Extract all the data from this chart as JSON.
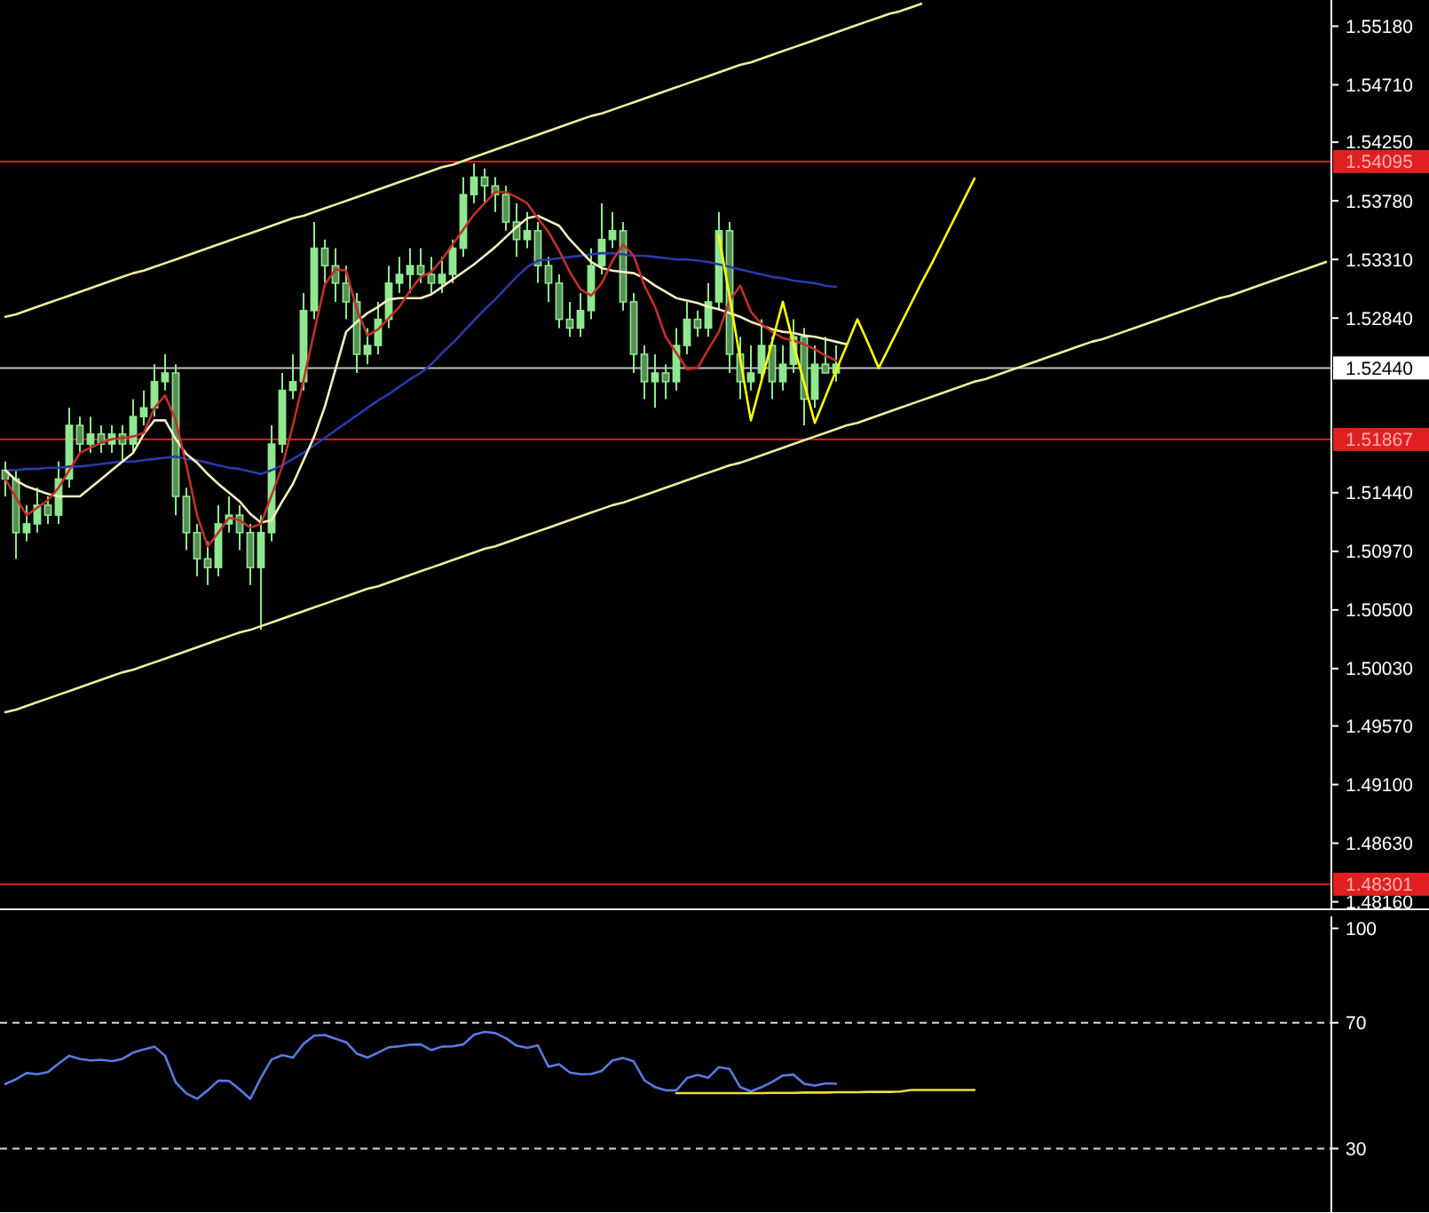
{
  "chart_data": [
    {
      "type": "candlestick",
      "ylim": [
        1.481,
        1.5539
      ],
      "tick_labels": "y",
      "color": "#8fe88f",
      "grid": false,
      "legend": false,
      "yticks": [
        {
          "value": 1.5518,
          "label": "1.55180"
        },
        {
          "value": 1.5471,
          "label": "1.54710"
        },
        {
          "value": 1.5425,
          "label": "1.54250"
        },
        {
          "value": 1.5378,
          "label": "1.53780"
        },
        {
          "value": 1.5331,
          "label": "1.53310"
        },
        {
          "value": 1.5284,
          "label": "1.52840"
        },
        {
          "value": 1.5144,
          "label": "1.51440"
        },
        {
          "value": 1.5097,
          "label": "1.50970"
        },
        {
          "value": 1.505,
          "label": "1.50500"
        },
        {
          "value": 1.5003,
          "label": "1.50030"
        },
        {
          "value": 1.4957,
          "label": "1.49570"
        },
        {
          "value": 1.491,
          "label": "1.49100"
        },
        {
          "value": 1.4863,
          "label": "1.48630"
        },
        {
          "value": 1.4816,
          "label": "1.48160"
        }
      ],
      "categories": [
        null,
        null,
        null,
        null,
        null,
        null,
        null,
        null,
        null,
        null,
        null,
        null,
        null,
        null,
        null,
        null,
        null,
        null,
        null,
        null,
        null,
        null,
        null,
        null,
        null,
        null,
        null,
        null,
        null,
        null,
        null,
        null,
        null,
        null,
        null,
        null,
        null,
        null,
        null,
        null,
        null,
        null,
        null,
        null,
        null,
        null,
        null,
        null,
        null,
        null,
        null,
        null,
        null,
        null,
        null,
        null,
        null,
        null,
        null,
        null,
        null,
        null,
        null,
        null,
        null,
        null,
        null,
        null,
        null,
        null,
        null,
        null,
        null,
        null,
        null,
        null,
        null,
        null,
        null,
        null,
        null,
        null,
        null,
        null,
        null,
        null,
        null,
        null,
        null,
        null,
        null,
        null,
        null,
        null,
        null,
        null,
        null,
        null,
        null,
        null,
        null,
        null,
        null,
        null,
        null,
        null,
        null,
        null,
        null,
        null,
        null,
        null,
        null,
        null,
        null,
        null,
        null,
        null,
        null,
        null,
        null,
        null,
        null,
        null,
        null
      ],
      "ohlc": [
        [
          1.5162,
          1.5169,
          1.5141,
          1.5155
        ],
        [
          1.5155,
          1.5162,
          1.5091,
          1.5112
        ],
        [
          1.5112,
          1.5134,
          1.5105,
          1.5119
        ],
        [
          1.5119,
          1.5148,
          1.5112,
          1.5134
        ],
        [
          1.5134,
          1.5141,
          1.5119,
          1.5126
        ],
        [
          1.5126,
          1.5169,
          1.5119,
          1.5155
        ],
        [
          1.5155,
          1.5212,
          1.5148,
          1.5198
        ],
        [
          1.5198,
          1.5205,
          1.5176,
          1.5183
        ],
        [
          1.5183,
          1.5205,
          1.5176,
          1.5191
        ],
        [
          1.5191,
          1.5198,
          1.5176,
          1.5183
        ],
        [
          1.5183,
          1.5198,
          1.5176,
          1.5191
        ],
        [
          1.5191,
          1.5198,
          1.5169,
          1.5183
        ],
        [
          1.5183,
          1.5219,
          1.5176,
          1.5205
        ],
        [
          1.5205,
          1.5226,
          1.5198,
          1.5212
        ],
        [
          1.5212,
          1.5247,
          1.5205,
          1.5233
        ],
        [
          1.5233,
          1.5255,
          1.5226,
          1.524
        ],
        [
          1.524,
          1.5247,
          1.5126,
          1.5141
        ],
        [
          1.5141,
          1.5148,
          1.5098,
          1.5112
        ],
        [
          1.5112,
          1.5119,
          1.5077,
          1.5091
        ],
        [
          1.5091,
          1.5105,
          1.507,
          1.5084
        ],
        [
          1.5084,
          1.5134,
          1.5077,
          1.5119
        ],
        [
          1.5119,
          1.5141,
          1.5112,
          1.5126
        ],
        [
          1.5126,
          1.5134,
          1.5098,
          1.5112
        ],
        [
          1.5112,
          1.5119,
          1.507,
          1.5084
        ],
        [
          1.5084,
          1.5126,
          1.5034,
          1.5112
        ],
        [
          1.5112,
          1.5198,
          1.5105,
          1.5183
        ],
        [
          1.5183,
          1.524,
          1.5176,
          1.5226
        ],
        [
          1.5226,
          1.5255,
          1.5219,
          1.5233
        ],
        [
          1.5233,
          1.5304,
          1.5226,
          1.529
        ],
        [
          1.529,
          1.5361,
          1.5283,
          1.534
        ],
        [
          1.534,
          1.5347,
          1.5312,
          1.5326
        ],
        [
          1.5326,
          1.534,
          1.5297,
          1.5312
        ],
        [
          1.5312,
          1.5326,
          1.5283,
          1.5297
        ],
        [
          1.5297,
          1.5304,
          1.524,
          1.5255
        ],
        [
          1.5255,
          1.5276,
          1.5247,
          1.5262
        ],
        [
          1.5262,
          1.5297,
          1.5255,
          1.5283
        ],
        [
          1.5283,
          1.5326,
          1.5276,
          1.5312
        ],
        [
          1.5312,
          1.5333,
          1.5304,
          1.5319
        ],
        [
          1.5319,
          1.534,
          1.5304,
          1.5326
        ],
        [
          1.5326,
          1.534,
          1.5312,
          1.5319
        ],
        [
          1.5319,
          1.5333,
          1.5304,
          1.5312
        ],
        [
          1.5312,
          1.5333,
          1.5304,
          1.5319
        ],
        [
          1.5319,
          1.5347,
          1.5312,
          1.534
        ],
        [
          1.534,
          1.5397,
          1.5333,
          1.5383
        ],
        [
          1.5383,
          1.5408,
          1.5376,
          1.5397
        ],
        [
          1.5397,
          1.5404,
          1.5376,
          1.539
        ],
        [
          1.539,
          1.5397,
          1.5369,
          1.5383
        ],
        [
          1.5383,
          1.539,
          1.5354,
          1.5361
        ],
        [
          1.5361,
          1.5376,
          1.5333,
          1.5347
        ],
        [
          1.5347,
          1.5369,
          1.534,
          1.5354
        ],
        [
          1.5354,
          1.5361,
          1.5312,
          1.5326
        ],
        [
          1.5326,
          1.5333,
          1.5297,
          1.5312
        ],
        [
          1.5312,
          1.5319,
          1.5276,
          1.5283
        ],
        [
          1.5283,
          1.5297,
          1.5269,
          1.5276
        ],
        [
          1.5276,
          1.5304,
          1.5269,
          1.529
        ],
        [
          1.529,
          1.534,
          1.5283,
          1.5326
        ],
        [
          1.5326,
          1.5376,
          1.5319,
          1.5347
        ],
        [
          1.5347,
          1.5369,
          1.534,
          1.5354
        ],
        [
          1.5354,
          1.5361,
          1.529,
          1.5297
        ],
        [
          1.5297,
          1.5304,
          1.524,
          1.5255
        ],
        [
          1.5255,
          1.5262,
          1.5219,
          1.5233
        ],
        [
          1.5233,
          1.5255,
          1.5212,
          1.524
        ],
        [
          1.524,
          1.5247,
          1.5219,
          1.5233
        ],
        [
          1.5233,
          1.5276,
          1.5226,
          1.5262
        ],
        [
          1.5262,
          1.5297,
          1.5255,
          1.5283
        ],
        [
          1.5283,
          1.529,
          1.5269,
          1.5276
        ],
        [
          1.5276,
          1.5312,
          1.5269,
          1.5297
        ],
        [
          1.5297,
          1.5369,
          1.529,
          1.5354
        ],
        [
          1.5354,
          1.5361,
          1.524,
          1.5255
        ],
        [
          1.5255,
          1.5269,
          1.5219,
          1.5233
        ],
        [
          1.5233,
          1.5262,
          1.5226,
          1.524
        ],
        [
          1.524,
          1.5283,
          1.5233,
          1.5262
        ],
        [
          1.5262,
          1.5269,
          1.5219,
          1.5233
        ],
        [
          1.5233,
          1.5262,
          1.5226,
          1.5247
        ],
        [
          1.5247,
          1.5283,
          1.524,
          1.5269
        ],
        [
          1.5269,
          1.5276,
          1.5198,
          1.5219
        ],
        [
          1.5219,
          1.5262,
          1.5212,
          1.5247
        ],
        [
          1.5247,
          1.5269,
          1.524,
          1.524
        ],
        [
          1.524,
          1.5262,
          1.5233,
          1.5247
        ],
        null,
        null,
        null,
        null,
        null,
        null,
        null,
        null,
        null,
        null,
        null,
        null,
        null,
        null,
        null,
        null,
        null,
        null,
        null,
        null,
        null,
        null,
        null,
        null,
        null,
        null,
        null,
        null,
        null,
        null,
        null,
        null,
        null,
        null,
        null,
        null,
        null,
        null,
        null,
        null,
        null,
        null,
        null,
        null,
        null,
        null
      ],
      "series": [
        {
          "type": "line",
          "color": "#2a3aa8",
          "values": [
            1.5162,
            1.5162,
            1.5163,
            1.5163,
            1.5164,
            1.5164,
            1.5165,
            1.5165,
            1.5166,
            1.5167,
            1.5168,
            1.5169,
            1.5169,
            1.517,
            1.5171,
            1.5172,
            1.5173,
            1.5171,
            1.517,
            1.5168,
            1.5166,
            1.5164,
            1.5163,
            1.5161,
            1.5159,
            1.5162,
            1.5166,
            1.5171,
            1.5176,
            1.5182,
            1.5188,
            1.5194,
            1.52,
            1.5206,
            1.5212,
            1.5218,
            1.5223,
            1.5229,
            1.5235,
            1.524,
            1.5247,
            1.5256,
            1.5264,
            1.5273,
            1.5282,
            1.5291,
            1.5299,
            1.5308,
            1.5317,
            1.5325,
            1.533,
            1.5331,
            1.5332,
            1.5333,
            1.5334,
            1.5335,
            1.5336,
            1.5336,
            1.5335,
            1.5334,
            1.5334,
            1.5333,
            1.5332,
            1.5331,
            1.5331,
            1.533,
            1.5329,
            1.5327,
            1.5325,
            1.5323,
            1.5321,
            1.5319,
            1.5317,
            1.5316,
            1.5314,
            1.5313,
            1.5312,
            1.531,
            1.5309,
            null,
            null,
            null,
            null,
            null,
            null,
            null,
            null,
            null,
            null,
            null,
            null,
            null,
            null,
            null,
            null,
            null,
            null,
            null,
            null,
            null,
            null,
            null,
            null,
            null,
            null,
            null,
            null,
            null,
            null,
            null,
            null,
            null,
            null,
            null,
            null,
            null,
            null,
            null,
            null,
            null,
            null,
            null,
            null,
            null,
            null
          ]
        },
        {
          "type": "line",
          "color": "#f5f0c0",
          "values": [
            1.5162,
            1.5154,
            1.5149,
            1.5146,
            1.5143,
            1.5141,
            1.5141,
            1.5141,
            1.5148,
            1.5155,
            1.5162,
            1.5169,
            1.5176,
            1.5191,
            1.5202,
            1.5202,
            1.5187,
            1.5175,
            1.5168,
            1.5159,
            1.5151,
            1.5144,
            1.5137,
            1.5127,
            1.512,
            1.5122,
            1.5137,
            1.5151,
            1.517,
            1.5189,
            1.5213,
            1.5243,
            1.5273,
            1.5281,
            1.5288,
            1.5293,
            1.5299,
            1.53,
            1.53,
            1.53,
            1.5303,
            1.5309,
            1.5315,
            1.5321,
            1.5327,
            1.5334,
            1.5341,
            1.5349,
            1.5357,
            1.5364,
            1.5366,
            1.5362,
            1.5358,
            1.5347,
            1.5338,
            1.5329,
            1.5324,
            1.5322,
            1.5321,
            1.532,
            1.5316,
            1.531,
            1.5305,
            1.53,
            1.5298,
            1.5296,
            1.5293,
            1.5291,
            1.5288,
            1.5285,
            1.5281,
            1.5278,
            1.5275,
            1.5273,
            1.5272,
            1.527,
            1.5269,
            1.5267,
            1.5265,
            1.5263,
            null,
            null,
            null,
            null,
            null,
            null,
            null,
            null,
            null,
            null,
            null,
            null,
            null,
            null,
            null,
            null,
            null,
            null,
            null,
            null,
            null,
            null,
            null,
            null,
            null,
            null,
            null,
            null,
            null,
            null,
            null,
            null,
            null,
            null,
            null,
            null,
            null,
            null,
            null,
            null,
            null,
            null,
            null,
            null,
            null
          ]
        },
        {
          "type": "line",
          "color": "#c0302a",
          "values": [
            1.5155,
            1.514,
            1.5126,
            1.5132,
            1.5138,
            1.5148,
            1.5162,
            1.5176,
            1.518,
            1.5184,
            1.5187,
            1.5188,
            1.5189,
            1.5192,
            1.5212,
            1.5222,
            1.5202,
            1.5166,
            1.5126,
            1.5101,
            1.5112,
            1.5124,
            1.5122,
            1.5116,
            1.5119,
            1.5142,
            1.5165,
            1.5198,
            1.5234,
            1.5273,
            1.5311,
            1.5323,
            1.5322,
            1.5291,
            1.527,
            1.5275,
            1.5284,
            1.5293,
            1.5306,
            1.5317,
            1.5321,
            1.5331,
            1.5343,
            1.5355,
            1.5367,
            1.5376,
            1.5385,
            1.5385,
            1.5381,
            1.5376,
            1.5364,
            1.5353,
            1.5338,
            1.5321,
            1.5307,
            1.5302,
            1.5312,
            1.533,
            1.5343,
            1.5334,
            1.531,
            1.5293,
            1.5269,
            1.5256,
            1.5243,
            1.5244,
            1.5259,
            1.5273,
            1.5298,
            1.531,
            1.5289,
            1.5279,
            1.5273,
            1.5268,
            1.5266,
            1.5263,
            1.5259,
            1.5254,
            1.525,
            null,
            null,
            null,
            null,
            null,
            null,
            null,
            null,
            null,
            null,
            null,
            null,
            null,
            null,
            null,
            null,
            null,
            null,
            null,
            null,
            null,
            null,
            null,
            null,
            null,
            null,
            null,
            null,
            null,
            null,
            null,
            null,
            null,
            null,
            null,
            null,
            null,
            null,
            null,
            null,
            null,
            null,
            null,
            null,
            null,
            null
          ]
        },
        {
          "type": "line",
          "color": "#f0f0a0",
          "values": [
            1.5285,
            1.5287,
            1.529,
            1.5293,
            1.5296,
            1.5299,
            1.5302,
            1.5305,
            1.5308,
            1.5311,
            1.5314,
            1.5317,
            1.532,
            1.5322,
            1.5325,
            1.5328,
            1.5331,
            1.5334,
            1.5337,
            1.534,
            1.5343,
            1.5346,
            1.5349,
            1.5352,
            1.5355,
            1.5358,
            1.5361,
            1.5364,
            1.5366,
            1.5369,
            1.5372,
            1.5375,
            1.5378,
            1.5381,
            1.5384,
            1.5387,
            1.539,
            1.5393,
            1.5396,
            1.5399,
            1.5402,
            1.5405,
            1.5407,
            1.541,
            1.5413,
            1.5416,
            1.5419,
            1.5422,
            1.5425,
            1.5428,
            1.5431,
            1.5434,
            1.5437,
            1.544,
            1.5443,
            1.5446,
            1.5448,
            1.5451,
            1.5454,
            1.5457,
            1.546,
            1.5463,
            1.5466,
            1.5469,
            1.5472,
            1.5475,
            1.5478,
            1.5481,
            1.5484,
            1.5487,
            1.5489,
            1.5492,
            1.5495,
            1.5498,
            1.5501,
            1.5504,
            1.5507,
            1.551,
            1.5513,
            1.5516,
            1.5519,
            1.5522,
            1.5525,
            1.5528,
            1.553,
            1.5533,
            1.5536,
            null,
            null,
            null,
            null,
            null,
            null,
            null,
            null,
            null,
            null,
            null,
            null,
            null,
            null,
            null,
            null,
            null,
            null,
            null,
            null,
            null,
            null,
            null,
            null,
            null,
            null,
            null,
            null,
            null,
            null,
            null,
            null,
            null,
            null,
            null,
            null,
            null,
            null
          ]
        },
        {
          "type": "line",
          "color": "#f0f0a0",
          "values": [
            1.4968,
            1.497,
            1.4973,
            1.4976,
            1.4979,
            1.4982,
            1.4985,
            1.4988,
            1.4991,
            1.4994,
            1.4997,
            1.5,
            1.5002,
            1.5005,
            1.5008,
            1.5011,
            1.5014,
            1.5017,
            1.502,
            1.5023,
            1.5026,
            1.5029,
            1.5032,
            1.5034,
            1.5037,
            1.504,
            1.5043,
            1.5046,
            1.5049,
            1.5052,
            1.5055,
            1.5058,
            1.5061,
            1.5064,
            1.5067,
            1.5069,
            1.5072,
            1.5075,
            1.5078,
            1.5081,
            1.5084,
            1.5087,
            1.509,
            1.5093,
            1.5096,
            1.5099,
            1.5101,
            1.5104,
            1.5107,
            1.511,
            1.5113,
            1.5116,
            1.5119,
            1.5122,
            1.5125,
            1.5128,
            1.5131,
            1.5134,
            1.5136,
            1.5139,
            1.5142,
            1.5145,
            1.5148,
            1.5151,
            1.5154,
            1.5157,
            1.516,
            1.5163,
            1.5166,
            1.5168,
            1.5171,
            1.5174,
            1.5177,
            1.518,
            1.5183,
            1.5186,
            1.5189,
            1.5192,
            1.5195,
            1.5198,
            1.52,
            1.5203,
            1.5206,
            1.5209,
            1.5212,
            1.5215,
            1.5218,
            1.5221,
            1.5224,
            1.5227,
            1.523,
            1.5233,
            1.5235,
            1.5238,
            1.5241,
            1.5244,
            1.5247,
            1.525,
            1.5253,
            1.5256,
            1.5259,
            1.5262,
            1.5265,
            1.5267,
            1.527,
            1.5273,
            1.5276,
            1.5279,
            1.5282,
            1.5285,
            1.5288,
            1.5291,
            1.5294,
            1.5297,
            1.53,
            1.5302,
            1.5305,
            1.5308,
            1.5311,
            1.5314,
            1.5317,
            1.532,
            1.5323,
            1.5326,
            1.5329
          ]
        },
        {
          "type": "line",
          "color": "#ffff00",
          "values": [
            null,
            null,
            null,
            null,
            null,
            null,
            null,
            null,
            null,
            null,
            null,
            null,
            null,
            null,
            null,
            null,
            null,
            null,
            null,
            null,
            null,
            null,
            null,
            null,
            null,
            null,
            null,
            null,
            null,
            null,
            null,
            null,
            null,
            null,
            null,
            null,
            null,
            null,
            null,
            null,
            null,
            null,
            null,
            null,
            null,
            null,
            null,
            null,
            null,
            null,
            null,
            null,
            null,
            null,
            null,
            null,
            null,
            null,
            null,
            null,
            null,
            null,
            null,
            null,
            null,
            null,
            null,
            1.535,
            1.5301,
            1.5251,
            1.5202,
            1.5234,
            1.5265,
            1.5297,
            1.5263,
            1.5232,
            1.52,
            1.5221,
            1.5242,
            1.5262,
            1.5283,
            1.5264,
            1.5244,
            1.5261,
            1.5278,
            1.5295,
            1.5312,
            1.5328,
            1.5345,
            1.5362,
            1.5379,
            1.5396,
            null,
            null,
            null,
            null,
            null,
            null,
            null,
            null,
            null,
            null,
            null,
            null,
            null,
            null,
            null,
            null,
            null,
            null,
            null,
            null,
            null,
            null,
            null,
            null,
            null,
            null,
            null,
            null,
            null,
            null,
            null,
            null,
            null
          ]
        }
      ],
      "ref_lines": [
        {
          "axis": "y",
          "value": 1.54095,
          "label": "1.54095",
          "color": "#e02020"
        },
        {
          "axis": "y",
          "value": 1.5244,
          "label": "1.52440",
          "color": "#c0c0c0"
        },
        {
          "axis": "y",
          "value": 1.51867,
          "label": "1.51867",
          "color": "#e02020"
        },
        {
          "axis": "y",
          "value": 1.48301,
          "label": "1.48301",
          "color": "#e02020"
        }
      ]
    },
    {
      "type": "line",
      "categories": [
        null,
        null,
        null,
        null,
        null,
        null,
        null,
        null,
        null,
        null,
        null,
        null,
        null,
        null,
        null,
        null,
        null,
        null,
        null,
        null,
        null,
        null,
        null,
        null,
        null,
        null,
        null,
        null,
        null,
        null,
        null,
        null,
        null,
        null,
        null,
        null,
        null,
        null,
        null,
        null,
        null,
        null,
        null,
        null,
        null,
        null,
        null,
        null,
        null,
        null,
        null,
        null,
        null,
        null,
        null,
        null,
        null,
        null,
        null,
        null,
        null,
        null,
        null,
        null,
        null,
        null,
        null,
        null,
        null,
        null,
        null,
        null,
        null,
        null,
        null,
        null,
        null,
        null,
        null,
        null,
        null,
        null,
        null,
        null,
        null,
        null,
        null,
        null,
        null,
        null,
        null,
        null,
        null,
        null,
        null,
        null,
        null,
        null,
        null,
        null,
        null,
        null,
        null,
        null,
        null,
        null,
        null,
        null,
        null,
        null,
        null,
        null,
        null,
        null,
        null,
        null,
        null,
        null,
        null,
        null,
        null,
        null,
        null,
        null,
        null
      ],
      "ylim": [
        9.5,
        103.8
      ],
      "yticks": [
        30,
        70,
        100
      ],
      "tick_labels": "y",
      "grid": false,
      "legend": false,
      "series": [
        {
          "color": "#5a7be0",
          "values": [
            50.5,
            52,
            54,
            53.6,
            54.3,
            57,
            59.5,
            58.5,
            58,
            58.2,
            57.8,
            58.5,
            60.5,
            61.5,
            62.4,
            59.5,
            51,
            47.5,
            45.8,
            48.5,
            51.6,
            51.5,
            48.8,
            45.8,
            52.5,
            58.3,
            59.7,
            58.9,
            63.3,
            65.9,
            66.1,
            64.9,
            63.8,
            60.2,
            58.9,
            60.5,
            62.2,
            62.5,
            63,
            63.1,
            61.3,
            62.4,
            62.5,
            63.1,
            66.2,
            67.1,
            66.7,
            65.1,
            62.7,
            62,
            62.8,
            56,
            56.8,
            54.2,
            53.6,
            53.7,
            54.7,
            58,
            58.8,
            57.7,
            51.7,
            49.5,
            48.5,
            48.5,
            52.4,
            53.4,
            52.5,
            55.9,
            55.3,
            49.5,
            48.2,
            49.5,
            51.2,
            53.2,
            53.5,
            50.6,
            50,
            50.7,
            50.6,
            null,
            null,
            null,
            null,
            null,
            null,
            null,
            null,
            null,
            null,
            null,
            null,
            null,
            null,
            null,
            null,
            null,
            null,
            null,
            null,
            null,
            null,
            null,
            null,
            null,
            null,
            null,
            null,
            null,
            null,
            null,
            null,
            null,
            null,
            null,
            null,
            null,
            null,
            null,
            null,
            null,
            null,
            null,
            null,
            null,
            null
          ]
        },
        {
          "color": "#e8e040",
          "values": [
            null,
            null,
            null,
            null,
            null,
            null,
            null,
            null,
            null,
            null,
            null,
            null,
            null,
            null,
            null,
            null,
            null,
            null,
            null,
            null,
            null,
            null,
            null,
            null,
            null,
            null,
            null,
            null,
            null,
            null,
            null,
            null,
            null,
            null,
            null,
            null,
            null,
            null,
            null,
            null,
            null,
            null,
            null,
            null,
            null,
            null,
            null,
            null,
            null,
            null,
            null,
            null,
            null,
            null,
            null,
            null,
            null,
            null,
            null,
            null,
            null,
            null,
            null,
            47.6,
            47.6,
            47.6,
            47.6,
            47.6,
            47.6,
            47.6,
            47.6,
            47.6,
            47.7,
            47.7,
            47.7,
            47.8,
            47.8,
            47.8,
            47.9,
            47.9,
            47.9,
            48,
            48,
            48,
            48.1,
            48.6,
            48.6,
            48.6,
            48.6,
            48.6,
            48.6,
            48.6,
            null,
            null,
            null,
            null,
            null,
            null,
            null,
            null,
            null,
            null,
            null,
            null,
            null,
            null,
            null,
            null,
            null,
            null,
            null,
            null,
            null,
            null,
            null,
            null,
            null,
            null,
            null,
            null,
            null,
            null,
            null,
            null,
            null
          ]
        }
      ],
      "ref_lines": [
        {
          "axis": "y",
          "value": 70,
          "color": "#d8d8d8",
          "line_style": "dashed"
        },
        {
          "axis": "y",
          "value": 30,
          "color": "#d8d8d8",
          "line_style": "dashed"
        }
      ]
    }
  ]
}
